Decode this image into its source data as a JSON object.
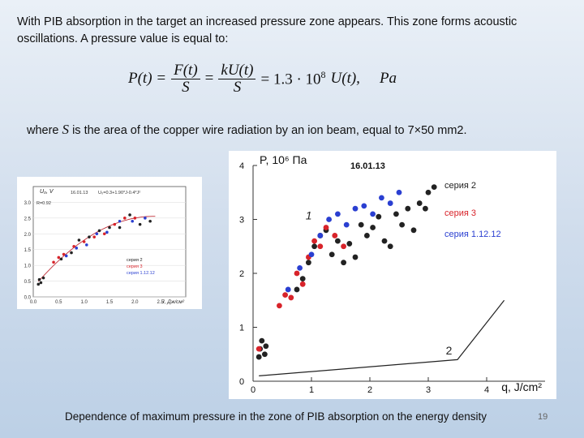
{
  "intro": "With PIB absorption in the target an increased pressure zone appears. This zone forms acoustic oscillations. A pressure value is equal to:",
  "formula": {
    "lhs": "P(t) =",
    "frac1_num": "F(t)",
    "frac1_den": "S",
    "eq1": "=",
    "frac2_num": "kU(t)",
    "frac2_den": "S",
    "rhs": "= 1.3 · 10",
    "rhs_exp": "8",
    "rhs_tail": "U(t),",
    "unit": "Pa"
  },
  "where": {
    "pre": "where",
    "var": "S",
    "post": "is the area of the copper wire radiation by an ion beam, equal to 7×50 mm2."
  },
  "caption": "Dependence of maximum pressure in the zone of PIB absorption on the energy density",
  "slide_number": "19",
  "chart_data": [
    {
      "type": "scatter",
      "title": "",
      "ylabel": "U₀, V",
      "xlabel": "J, Дж/см²",
      "date": "16.01.13",
      "fit_equation": "U₀=0.3+1.90*J-0.4*J²",
      "fit_r": "R=0.92",
      "xlim": [
        0,
        3.0
      ],
      "ylim": [
        0,
        3.5
      ],
      "xticks": [
        "0.0",
        "0.5",
        "1.0",
        "1.5",
        "2.0",
        "2.5"
      ],
      "yticks": [
        "0.0",
        "0.5",
        "1.0",
        "1.5",
        "2.0",
        "2.5",
        "3.0"
      ],
      "fit_curve": {
        "a": 0.3,
        "b": 1.9,
        "c": -0.4,
        "x_range": [
          0.1,
          2.4
        ]
      },
      "series": [
        {
          "name": "серия 2",
          "color": "#222222",
          "points": [
            [
              0.1,
              0.4
            ],
            [
              0.12,
              0.55
            ],
            [
              0.15,
              0.45
            ],
            [
              0.2,
              0.6
            ],
            [
              0.55,
              1.2
            ],
            [
              0.75,
              1.4
            ],
            [
              0.9,
              1.8
            ],
            [
              1.1,
              1.9
            ],
            [
              1.3,
              2.1
            ],
            [
              1.5,
              2.2
            ],
            [
              1.7,
              2.2
            ],
            [
              2.1,
              2.3
            ],
            [
              2.3,
              2.4
            ],
            [
              1.9,
              2.6
            ]
          ]
        },
        {
          "name": "серия 3",
          "color": "#d8232a",
          "points": [
            [
              0.4,
              1.1
            ],
            [
              0.5,
              1.25
            ],
            [
              0.6,
              1.35
            ],
            [
              0.8,
              1.6
            ],
            [
              1.0,
              1.75
            ],
            [
              1.2,
              1.9
            ],
            [
              1.4,
              2.0
            ],
            [
              1.6,
              2.3
            ],
            [
              1.8,
              2.5
            ],
            [
              2.0,
              2.5
            ]
          ]
        },
        {
          "name": "серия 1.12.12",
          "color": "#2a3fd1",
          "points": [
            [
              0.65,
              1.3
            ],
            [
              0.85,
              1.55
            ],
            [
              1.05,
              1.65
            ],
            [
              1.25,
              2.0
            ],
            [
              1.45,
              2.05
            ],
            [
              1.7,
              2.4
            ],
            [
              1.95,
              2.4
            ],
            [
              2.2,
              2.5
            ]
          ]
        }
      ]
    },
    {
      "type": "scatter",
      "title": "",
      "ylabel": "P, 10⁶ Па",
      "xlabel": "q, J/cm²",
      "date": "16.01.13",
      "xlim": [
        0,
        5
      ],
      "ylim": [
        0,
        4
      ],
      "xticks": [
        "0",
        "1",
        "2",
        "3",
        "4"
      ],
      "yticks": [
        "0",
        "1",
        "2",
        "3",
        "4"
      ],
      "annotations": [
        "1",
        "2"
      ],
      "curve2": {
        "x": [
          0.1,
          3.5,
          4.3
        ],
        "y": [
          0.1,
          0.4,
          1.5
        ]
      },
      "series": [
        {
          "name": "серия 2",
          "color": "#222222",
          "points": [
            [
              0.1,
              0.45
            ],
            [
              0.12,
              0.6
            ],
            [
              0.15,
              0.75
            ],
            [
              0.2,
              0.5
            ],
            [
              0.22,
              0.65
            ],
            [
              0.75,
              1.7
            ],
            [
              0.85,
              1.9
            ],
            [
              0.95,
              2.2
            ],
            [
              1.05,
              2.5
            ],
            [
              1.15,
              2.7
            ],
            [
              1.25,
              2.8
            ],
            [
              1.35,
              2.35
            ],
            [
              1.45,
              2.6
            ],
            [
              1.55,
              2.2
            ],
            [
              1.65,
              2.55
            ],
            [
              1.75,
              2.3
            ],
            [
              1.85,
              2.9
            ],
            [
              1.95,
              2.7
            ],
            [
              2.05,
              2.85
            ],
            [
              2.15,
              3.05
            ],
            [
              2.25,
              2.6
            ],
            [
              2.35,
              2.5
            ],
            [
              2.45,
              3.1
            ],
            [
              2.55,
              2.9
            ],
            [
              2.65,
              3.2
            ],
            [
              2.75,
              2.8
            ],
            [
              2.85,
              3.3
            ],
            [
              2.95,
              3.2
            ],
            [
              3.0,
              3.5
            ],
            [
              3.1,
              3.6
            ]
          ]
        },
        {
          "name": "серия 3",
          "color": "#d8232a",
          "points": [
            [
              0.1,
              0.6
            ],
            [
              0.45,
              1.4
            ],
            [
              0.55,
              1.6
            ],
            [
              0.65,
              1.55
            ],
            [
              0.75,
              2.0
            ],
            [
              0.85,
              1.8
            ],
            [
              0.95,
              2.3
            ],
            [
              1.05,
              2.6
            ],
            [
              1.15,
              2.5
            ],
            [
              1.25,
              2.85
            ],
            [
              1.4,
              2.7
            ],
            [
              1.55,
              2.5
            ]
          ]
        },
        {
          "name": "серия 1.12.12",
          "color": "#2a3fd1",
          "points": [
            [
              0.6,
              1.7
            ],
            [
              0.8,
              2.1
            ],
            [
              1.0,
              2.35
            ],
            [
              1.15,
              2.7
            ],
            [
              1.3,
              3.0
            ],
            [
              1.45,
              3.1
            ],
            [
              1.6,
              2.9
            ],
            [
              1.75,
              3.2
            ],
            [
              1.9,
              3.25
            ],
            [
              2.05,
              3.1
            ],
            [
              2.2,
              3.4
            ],
            [
              2.35,
              3.3
            ],
            [
              2.5,
              3.5
            ]
          ]
        }
      ]
    }
  ]
}
